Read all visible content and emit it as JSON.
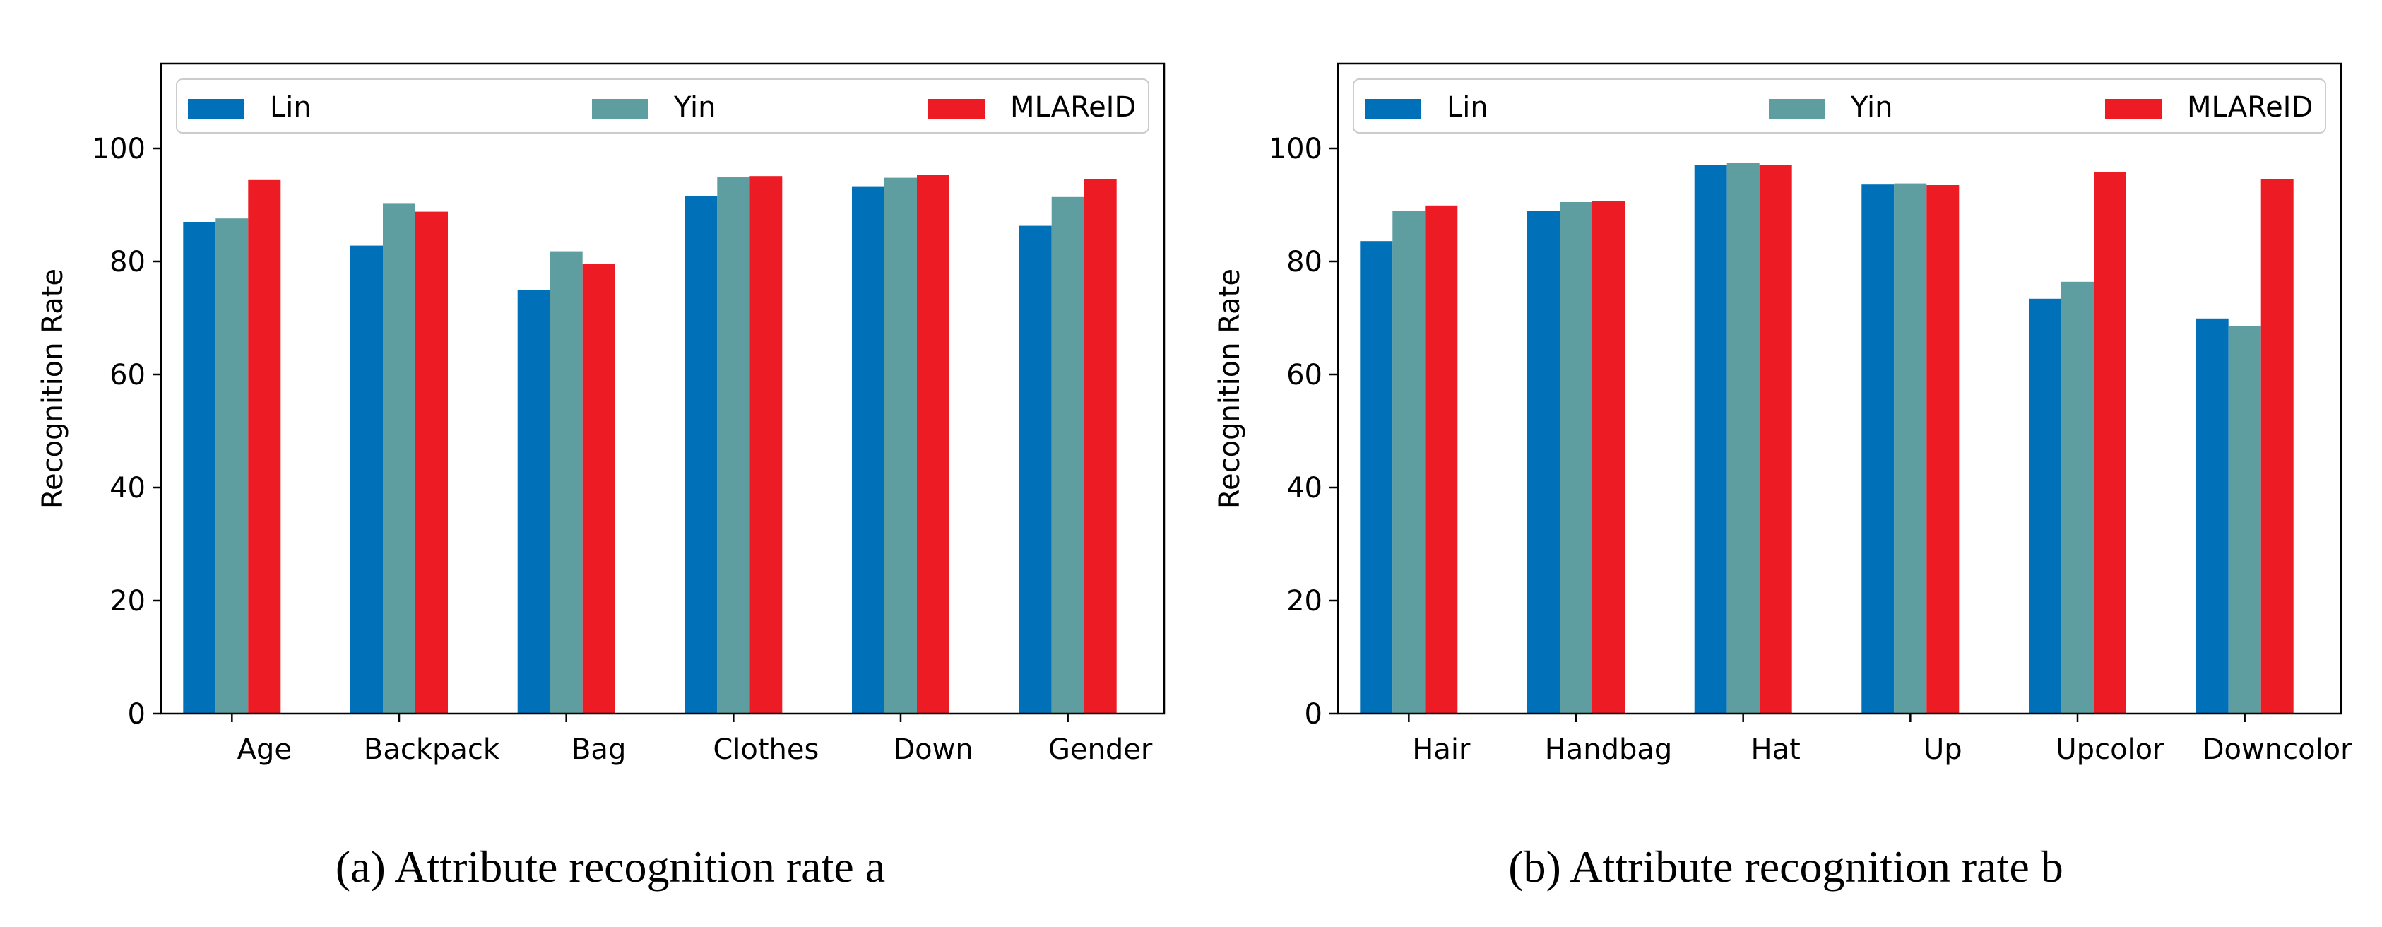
{
  "colors": {
    "Lin": "#0070B8",
    "Yin": "#5F9EA0",
    "MLAReID": "#ED1C24"
  },
  "chart_data": [
    {
      "type": "bar",
      "caption": "(a) Attribute recognition rate a",
      "ylabel": "Recognition Rate",
      "xlabel": "",
      "ylim": [
        0,
        115
      ],
      "yticks": [
        0,
        20,
        40,
        60,
        80,
        100
      ],
      "legend_placement": "top",
      "grid": false,
      "categories": [
        "Age",
        "Backpack",
        "Bag",
        "Clothes",
        "Down",
        "Gender"
      ],
      "series": [
        {
          "name": "Lin",
          "values": [
            87.0,
            82.8,
            75.0,
            91.5,
            93.3,
            86.3
          ]
        },
        {
          "name": "Yin",
          "values": [
            87.6,
            90.2,
            81.8,
            95.0,
            94.8,
            91.4
          ]
        },
        {
          "name": "MLAReID",
          "values": [
            94.4,
            88.8,
            79.6,
            95.1,
            95.3,
            94.5
          ]
        }
      ]
    },
    {
      "type": "bar",
      "caption": "(b) Attribute recognition rate b",
      "ylabel": "Recognition Rate",
      "xlabel": "",
      "ylim": [
        0,
        115
      ],
      "yticks": [
        0,
        20,
        40,
        60,
        80,
        100
      ],
      "legend_placement": "top",
      "grid": false,
      "categories": [
        "Hair",
        "Handbag",
        "Hat",
        "Up",
        "Upcolor",
        "Downcolor"
      ],
      "series": [
        {
          "name": "Lin",
          "values": [
            83.6,
            89.0,
            97.1,
            93.6,
            73.4,
            69.9
          ]
        },
        {
          "name": "Yin",
          "values": [
            89.0,
            90.5,
            97.4,
            93.8,
            76.4,
            68.6
          ]
        },
        {
          "name": "MLAReID",
          "values": [
            89.9,
            90.7,
            97.1,
            93.5,
            95.8,
            94.5
          ]
        }
      ]
    }
  ]
}
